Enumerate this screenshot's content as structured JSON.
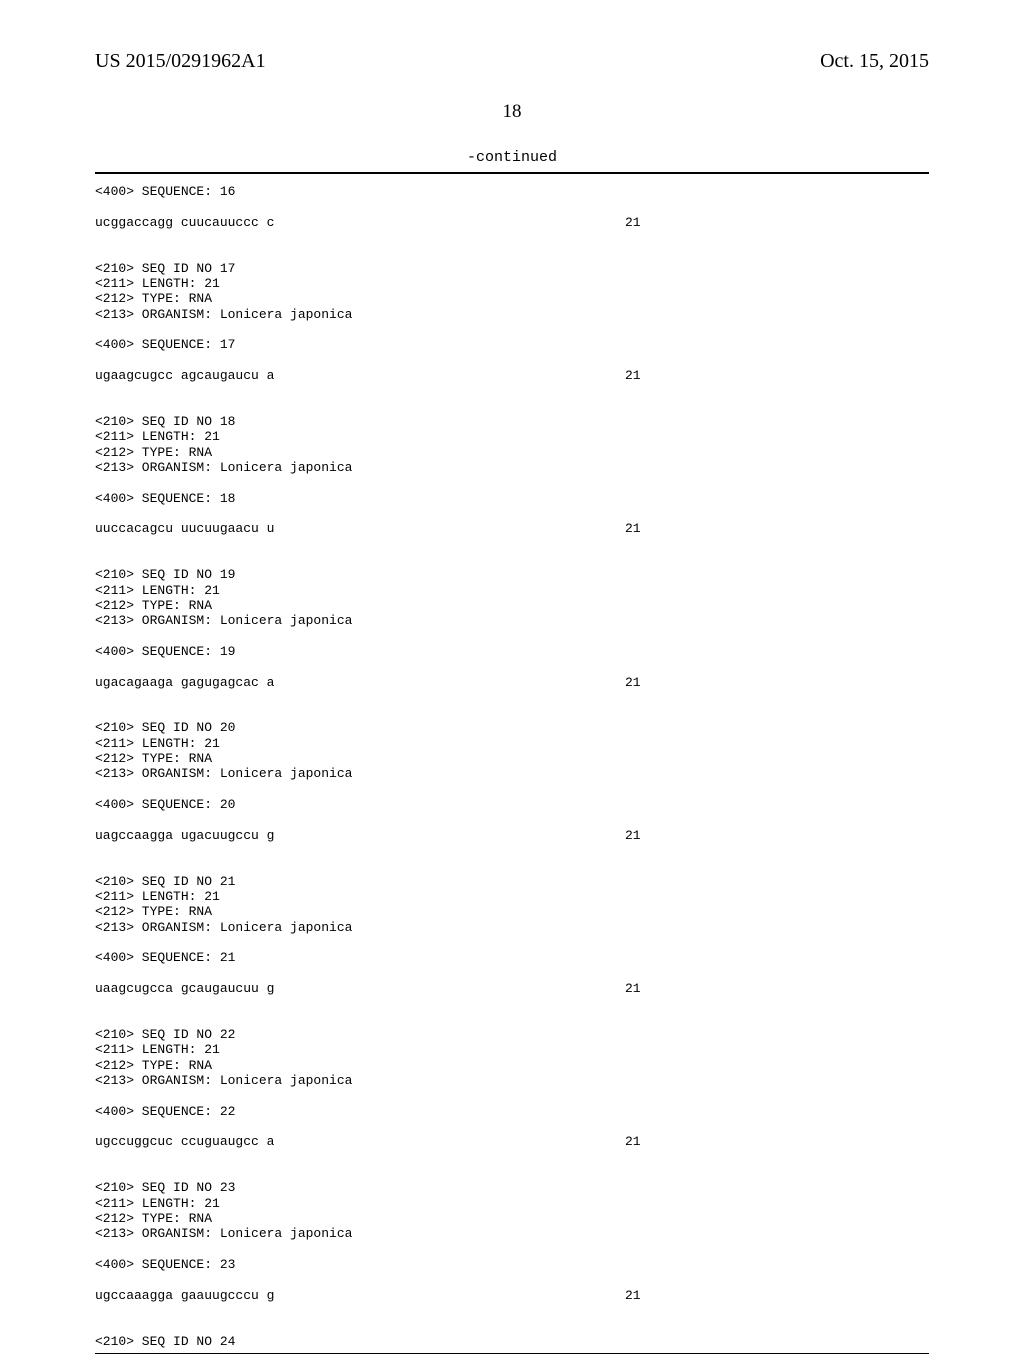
{
  "header": {
    "left": "US 2015/0291962A1",
    "right": "Oct. 15, 2015"
  },
  "page_number": "18",
  "continued": "-continued",
  "blocks": [
    {
      "type": "line",
      "text": "<400> SEQUENCE: 16"
    },
    {
      "type": "blank"
    },
    {
      "type": "seq",
      "text": "ucggaccagg cuucauuccc c",
      "num": "21"
    },
    {
      "type": "blank"
    },
    {
      "type": "blank"
    },
    {
      "type": "line",
      "text": "<210> SEQ ID NO 17"
    },
    {
      "type": "line",
      "text": "<211> LENGTH: 21"
    },
    {
      "type": "line",
      "text": "<212> TYPE: RNA"
    },
    {
      "type": "line",
      "text": "<213> ORGANISM: Lonicera japonica"
    },
    {
      "type": "blank"
    },
    {
      "type": "line",
      "text": "<400> SEQUENCE: 17"
    },
    {
      "type": "blank"
    },
    {
      "type": "seq",
      "text": "ugaagcugcc agcaugaucu a",
      "num": "21"
    },
    {
      "type": "blank"
    },
    {
      "type": "blank"
    },
    {
      "type": "line",
      "text": "<210> SEQ ID NO 18"
    },
    {
      "type": "line",
      "text": "<211> LENGTH: 21"
    },
    {
      "type": "line",
      "text": "<212> TYPE: RNA"
    },
    {
      "type": "line",
      "text": "<213> ORGANISM: Lonicera japonica"
    },
    {
      "type": "blank"
    },
    {
      "type": "line",
      "text": "<400> SEQUENCE: 18"
    },
    {
      "type": "blank"
    },
    {
      "type": "seq",
      "text": "uuccacagcu uucuugaacu u",
      "num": "21"
    },
    {
      "type": "blank"
    },
    {
      "type": "blank"
    },
    {
      "type": "line",
      "text": "<210> SEQ ID NO 19"
    },
    {
      "type": "line",
      "text": "<211> LENGTH: 21"
    },
    {
      "type": "line",
      "text": "<212> TYPE: RNA"
    },
    {
      "type": "line",
      "text": "<213> ORGANISM: Lonicera japonica"
    },
    {
      "type": "blank"
    },
    {
      "type": "line",
      "text": "<400> SEQUENCE: 19"
    },
    {
      "type": "blank"
    },
    {
      "type": "seq",
      "text": "ugacagaaga gagugagcac a",
      "num": "21"
    },
    {
      "type": "blank"
    },
    {
      "type": "blank"
    },
    {
      "type": "line",
      "text": "<210> SEQ ID NO 20"
    },
    {
      "type": "line",
      "text": "<211> LENGTH: 21"
    },
    {
      "type": "line",
      "text": "<212> TYPE: RNA"
    },
    {
      "type": "line",
      "text": "<213> ORGANISM: Lonicera japonica"
    },
    {
      "type": "blank"
    },
    {
      "type": "line",
      "text": "<400> SEQUENCE: 20"
    },
    {
      "type": "blank"
    },
    {
      "type": "seq",
      "text": "uagccaagga ugacuugccu g",
      "num": "21"
    },
    {
      "type": "blank"
    },
    {
      "type": "blank"
    },
    {
      "type": "line",
      "text": "<210> SEQ ID NO 21"
    },
    {
      "type": "line",
      "text": "<211> LENGTH: 21"
    },
    {
      "type": "line",
      "text": "<212> TYPE: RNA"
    },
    {
      "type": "line",
      "text": "<213> ORGANISM: Lonicera japonica"
    },
    {
      "type": "blank"
    },
    {
      "type": "line",
      "text": "<400> SEQUENCE: 21"
    },
    {
      "type": "blank"
    },
    {
      "type": "seq",
      "text": "uaagcugcca gcaugaucuu g",
      "num": "21"
    },
    {
      "type": "blank"
    },
    {
      "type": "blank"
    },
    {
      "type": "line",
      "text": "<210> SEQ ID NO 22"
    },
    {
      "type": "line",
      "text": "<211> LENGTH: 21"
    },
    {
      "type": "line",
      "text": "<212> TYPE: RNA"
    },
    {
      "type": "line",
      "text": "<213> ORGANISM: Lonicera japonica"
    },
    {
      "type": "blank"
    },
    {
      "type": "line",
      "text": "<400> SEQUENCE: 22"
    },
    {
      "type": "blank"
    },
    {
      "type": "seq",
      "text": "ugccuggcuc ccuguaugcc a",
      "num": "21"
    },
    {
      "type": "blank"
    },
    {
      "type": "blank"
    },
    {
      "type": "line",
      "text": "<210> SEQ ID NO 23"
    },
    {
      "type": "line",
      "text": "<211> LENGTH: 21"
    },
    {
      "type": "line",
      "text": "<212> TYPE: RNA"
    },
    {
      "type": "line",
      "text": "<213> ORGANISM: Lonicera japonica"
    },
    {
      "type": "blank"
    },
    {
      "type": "line",
      "text": "<400> SEQUENCE: 23"
    },
    {
      "type": "blank"
    },
    {
      "type": "seq",
      "text": "ugccaaagga gaauugcccu g",
      "num": "21"
    },
    {
      "type": "blank"
    },
    {
      "type": "blank"
    },
    {
      "type": "line",
      "text": "<210> SEQ ID NO 24"
    }
  ]
}
